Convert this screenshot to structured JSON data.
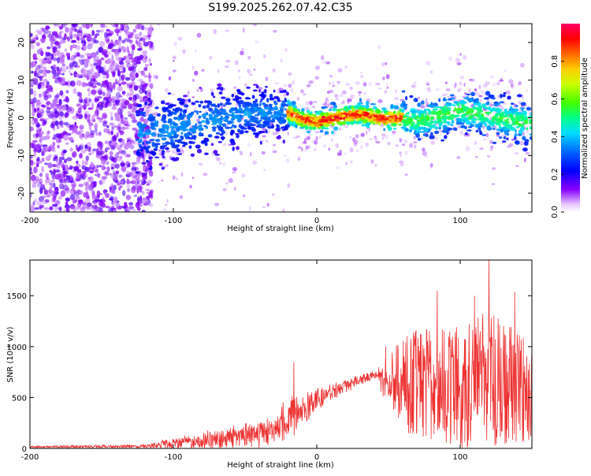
{
  "page": {
    "title": "S199.2025.262.07.42.C35"
  },
  "chart_data": [
    {
      "type": "heatmap",
      "title": "S199.2025.262.07.42.C35",
      "xlabel": "Height of straight line (km)",
      "ylabel": "Frequency (Hz)",
      "xlim": [
        -200,
        150
      ],
      "ylim": [
        -25,
        25
      ],
      "x_ticks": [
        -200,
        -100,
        0,
        100
      ],
      "y_ticks": [
        -20,
        -10,
        0,
        10,
        20
      ],
      "colorbar": {
        "label": "Normalized spectral amplitude",
        "range": [
          0,
          1
        ],
        "ticks": [
          0.0,
          0.2,
          0.4,
          0.6,
          0.8
        ]
      },
      "ridge_center_hz": [
        {
          "x": -110,
          "y": -3.5
        },
        {
          "x": -80,
          "y": -1
        },
        {
          "x": -50,
          "y": 1
        },
        {
          "x": -20,
          "y": 1.5
        },
        {
          "x": -10,
          "y": -0.5
        },
        {
          "x": 0,
          "y": -1
        },
        {
          "x": 15,
          "y": 0.2
        },
        {
          "x": 30,
          "y": 1
        },
        {
          "x": 45,
          "y": -0.2
        },
        {
          "x": 60,
          "y": 0
        },
        {
          "x": 70,
          "y": -1
        },
        {
          "x": 80,
          "y": 0
        },
        {
          "x": 100,
          "y": 2
        },
        {
          "x": 120,
          "y": 0.5
        },
        {
          "x": 140,
          "y": -1
        },
        {
          "x": 150,
          "y": -1.5
        }
      ]
    },
    {
      "type": "line",
      "xlabel": "Height of straight line (km)",
      "ylabel": "SNR (10 * v/v)",
      "xlim": [
        -200,
        150
      ],
      "ylim": [
        0,
        1850
      ],
      "x_ticks": [
        -200,
        -100,
        0,
        100
      ],
      "y_ticks": [
        0,
        500,
        1000,
        1500
      ],
      "series": [
        {
          "name": "SNR",
          "color": "#ee3333",
          "envelope": [
            {
              "x": -200,
              "baseline": 15,
              "spread": 25
            },
            {
              "x": -120,
              "baseline": 20,
              "spread": 40
            },
            {
              "x": -100,
              "baseline": 50,
              "spread": 130
            },
            {
              "x": -60,
              "baseline": 100,
              "spread": 250
            },
            {
              "x": -30,
              "baseline": 180,
              "spread": 300
            },
            {
              "x": -17,
              "baseline": 300,
              "spread": 550
            },
            {
              "x": 0,
              "baseline": 480,
              "spread": 250
            },
            {
              "x": 20,
              "baseline": 620,
              "spread": 150
            },
            {
              "x": 40,
              "baseline": 720,
              "spread": 100
            },
            {
              "x": 60,
              "baseline": 600,
              "spread": 900
            },
            {
              "x": 100,
              "baseline": 550,
              "spread": 1100
            },
            {
              "x": 120,
              "baseline": 600,
              "spread": 1250
            },
            {
              "x": 150,
              "baseline": 500,
              "spread": 900
            }
          ],
          "peaks": [
            {
              "x": -16,
              "y": 850
            },
            {
              "x": 48,
              "y": 1000
            },
            {
              "x": 84,
              "y": 1550
            },
            {
              "x": 110,
              "y": 1500
            },
            {
              "x": 120,
              "y": 1850
            },
            {
              "x": 138,
              "y": 1540
            }
          ]
        }
      ]
    }
  ]
}
